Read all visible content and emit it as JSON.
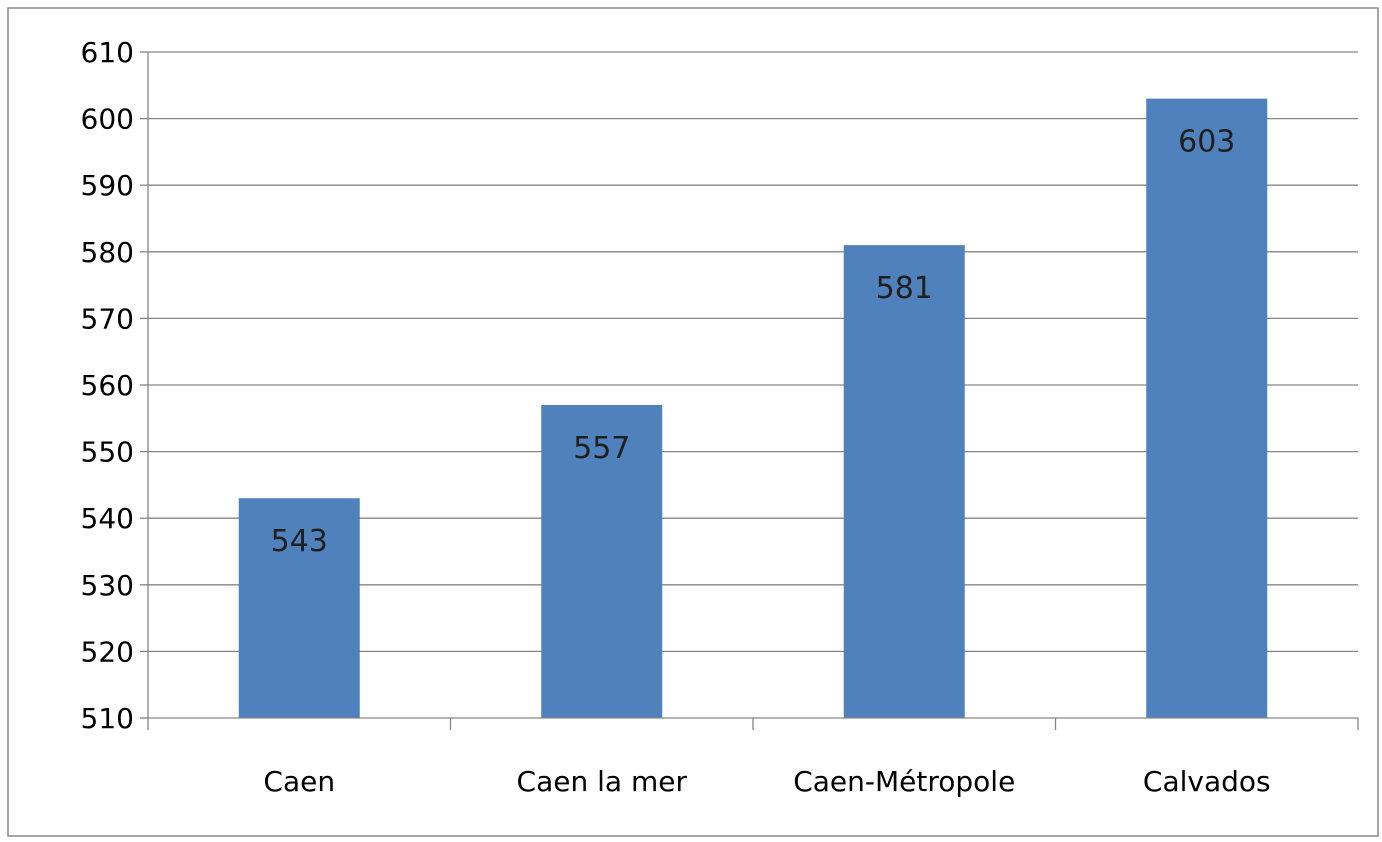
{
  "chart_data": {
    "type": "bar",
    "title": "",
    "xlabel": "",
    "ylabel": "",
    "categories": [
      "Caen",
      "Caen la mer",
      "Caen-Métropole",
      "Calvados"
    ],
    "series": [
      {
        "values": [
          543,
          557,
          581,
          603
        ]
      }
    ],
    "data_labels": [
      "543",
      "557",
      "581",
      "603"
    ],
    "ylim": [
      510,
      610
    ],
    "yticks": [
      510,
      520,
      530,
      540,
      550,
      560,
      570,
      580,
      590,
      600,
      610
    ],
    "ytick_labels": [
      "510",
      "520",
      "530",
      "540",
      "550",
      "560",
      "570",
      "580",
      "590",
      "600",
      "610"
    ],
    "grid": true,
    "legend": "none",
    "colors": {
      "bar": "#4f81bd",
      "grid": "#868686",
      "axis": "#868686",
      "text": "#000000",
      "data_label": "#1f1f1f",
      "border": "#888888"
    }
  }
}
